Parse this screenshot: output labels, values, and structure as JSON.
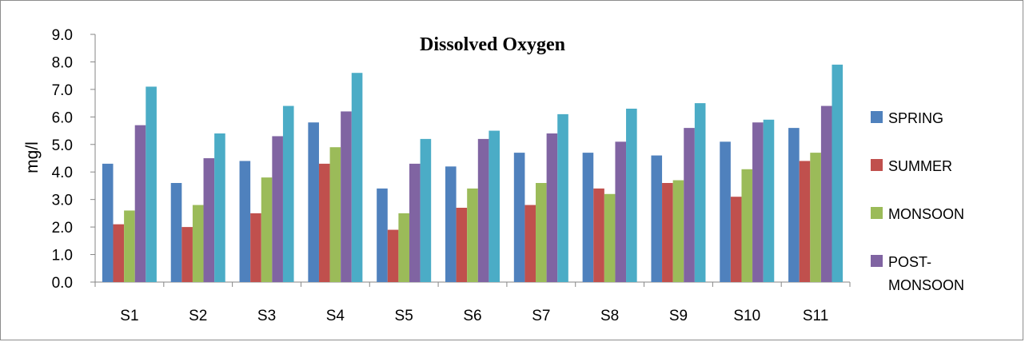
{
  "chart_data": {
    "type": "bar",
    "title": "Dissolved Oxygen",
    "xlabel": "",
    "ylabel": "mg/l",
    "ylim": [
      0,
      9
    ],
    "yticks": [
      "0.0",
      "1.0",
      "2.0",
      "3.0",
      "4.0",
      "5.0",
      "6.0",
      "7.0",
      "8.0",
      "9.0"
    ],
    "grid": false,
    "legend_position": "right",
    "categories": [
      "S1",
      "S2",
      "S3",
      "S4",
      "S5",
      "S6",
      "S7",
      "S8",
      "S9",
      "S10",
      "S11"
    ],
    "series": [
      {
        "name": "SPRING",
        "color": "#4f81bd",
        "values": [
          4.3,
          3.6,
          4.4,
          5.8,
          3.4,
          4.2,
          4.7,
          4.7,
          4.6,
          5.1,
          5.6
        ]
      },
      {
        "name": "SUMMER",
        "color": "#c0504d",
        "values": [
          2.1,
          2.0,
          2.5,
          4.3,
          1.9,
          2.7,
          2.8,
          3.4,
          3.6,
          3.1,
          4.4
        ]
      },
      {
        "name": "MONSOON",
        "color": "#9bbb59",
        "values": [
          2.6,
          2.8,
          3.8,
          4.9,
          2.5,
          3.4,
          3.6,
          3.2,
          3.7,
          4.1,
          4.7
        ]
      },
      {
        "name": "POST-MONSOON",
        "color": "#8064a2",
        "values": [
          5.7,
          4.5,
          5.3,
          6.2,
          4.3,
          5.2,
          5.4,
          5.1,
          5.6,
          5.8,
          6.4
        ]
      },
      {
        "color": "#4bacc6",
        "values": [
          7.1,
          5.4,
          6.4,
          7.6,
          5.2,
          5.5,
          6.1,
          6.3,
          6.5,
          5.9,
          7.9
        ]
      }
    ]
  }
}
